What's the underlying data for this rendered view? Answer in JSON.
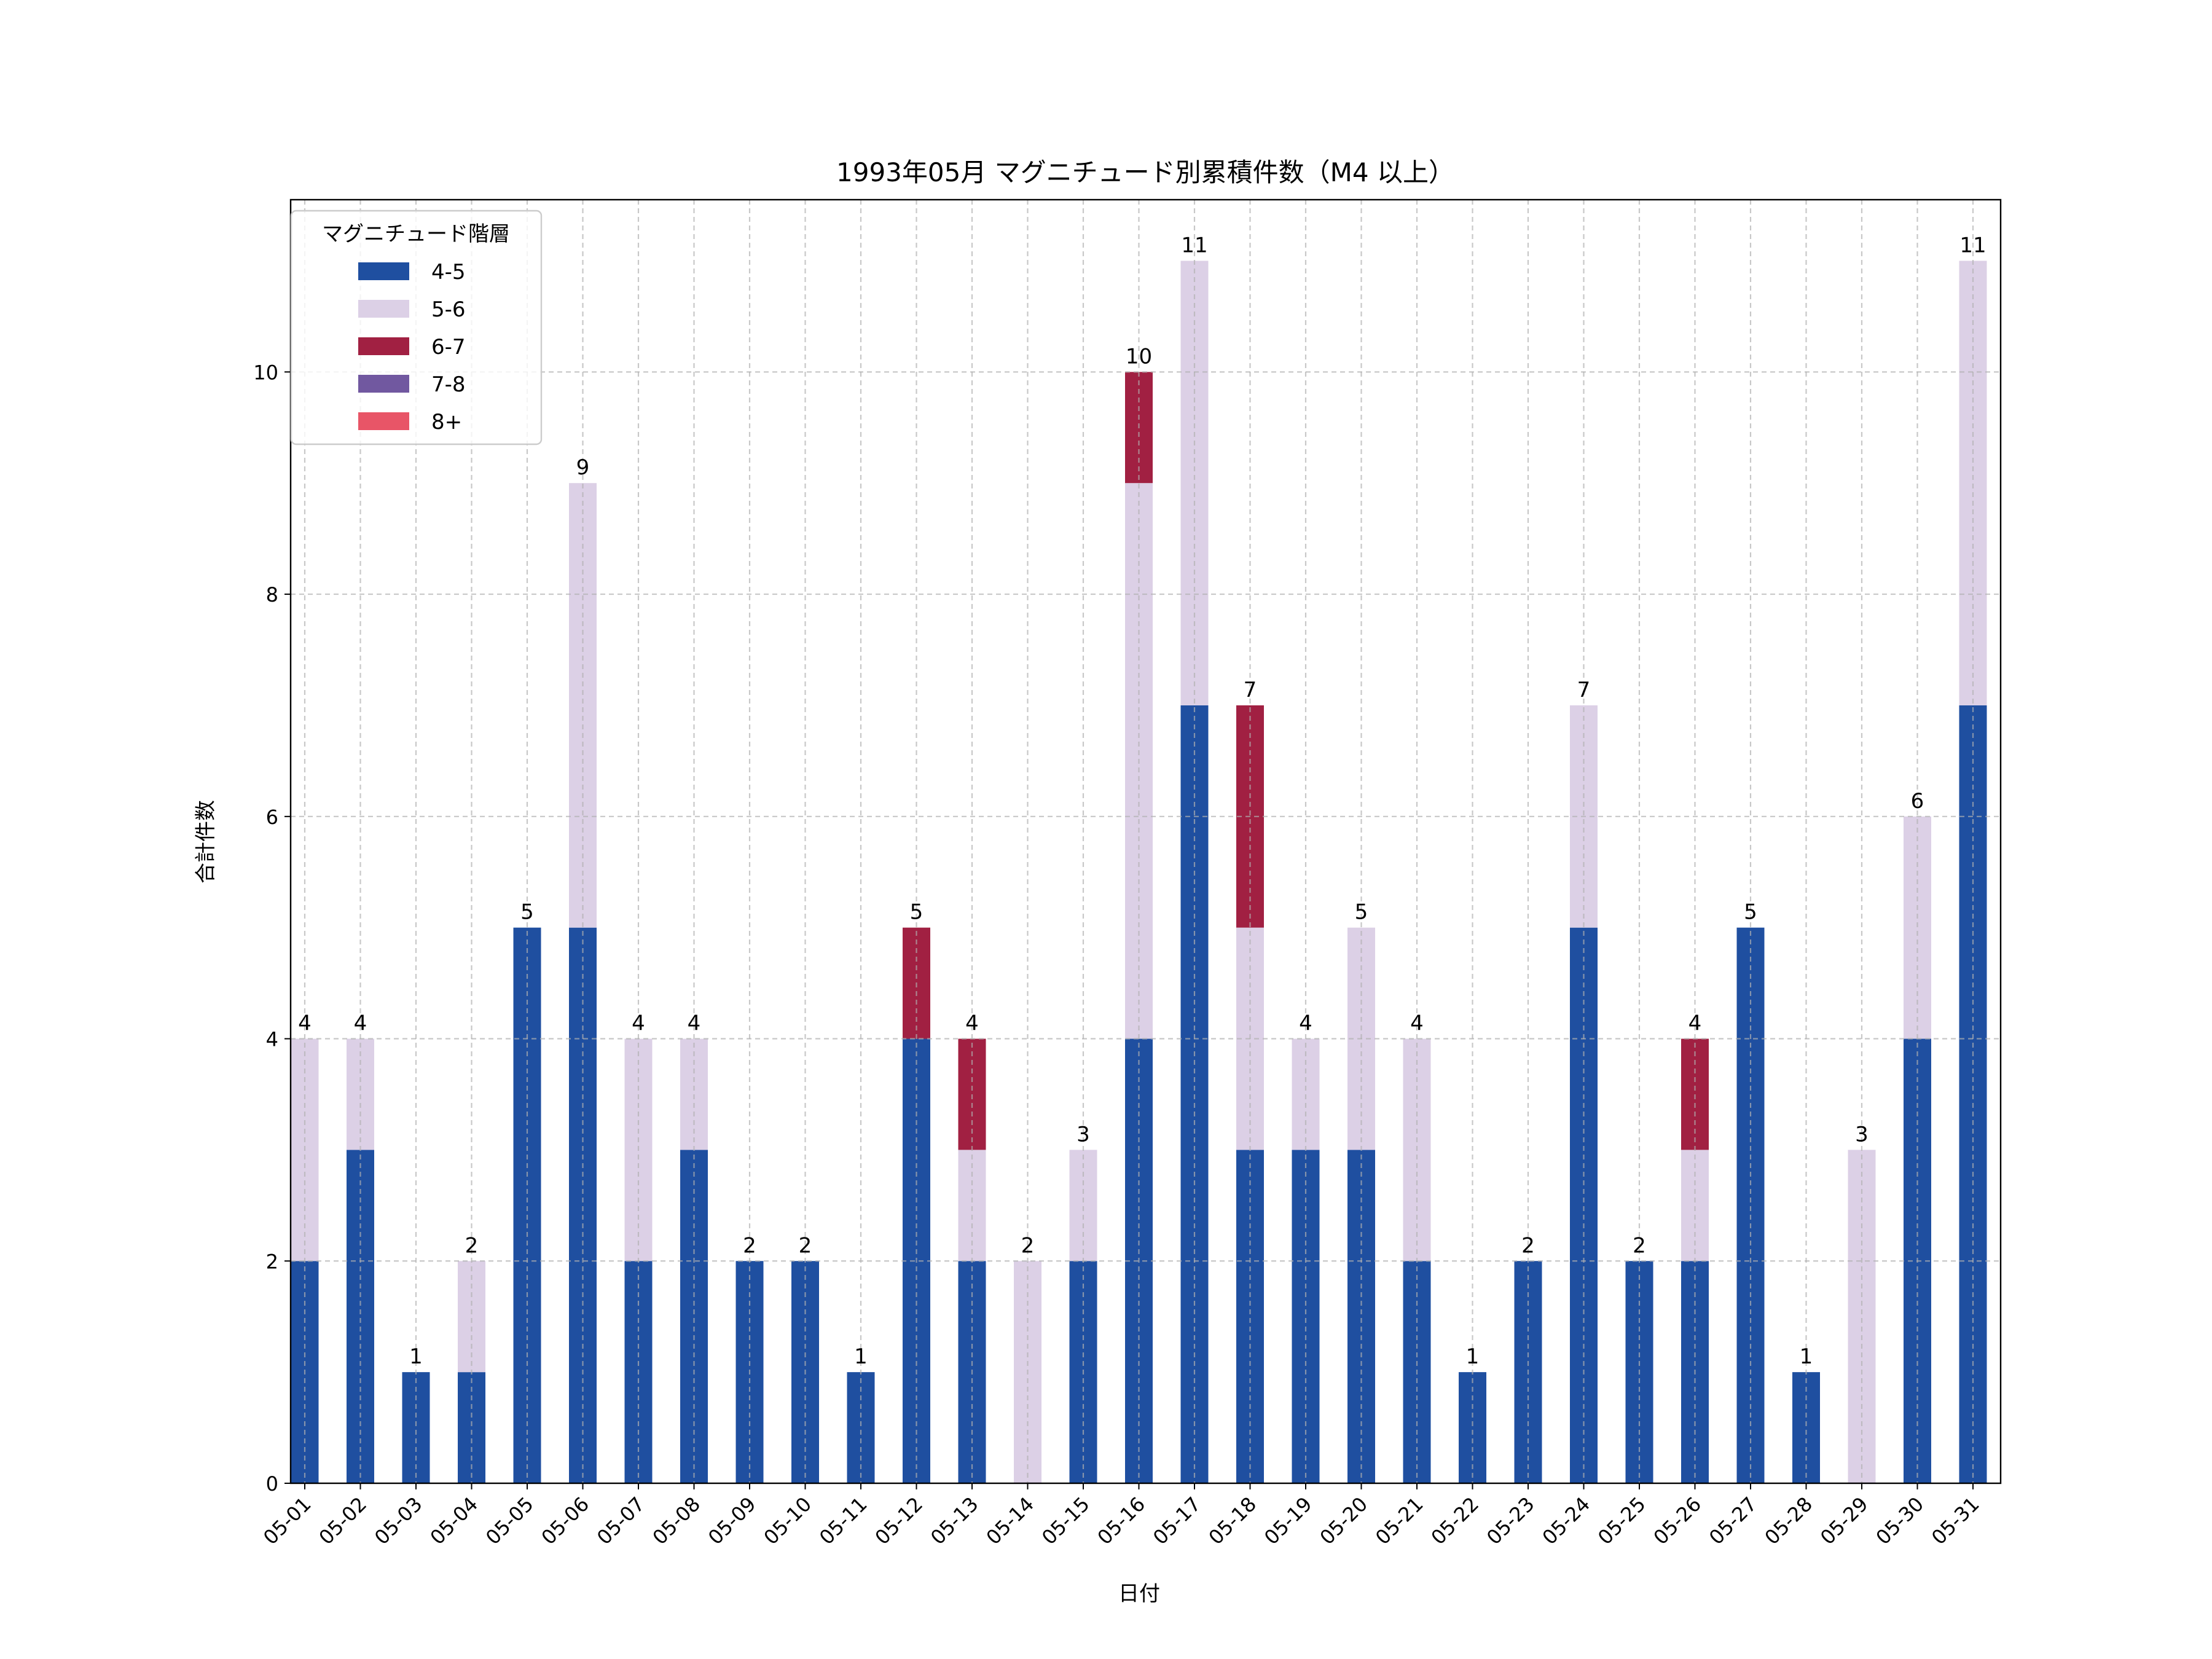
{
  "chart_data": {
    "type": "bar",
    "stacked": true,
    "title": "1993年05月 マグニチュード別累積件数（M4 以上）",
    "xlabel": "日付",
    "ylabel": "合計件数",
    "ylim": [
      0,
      11.55
    ],
    "yticks": [
      0,
      2,
      4,
      6,
      8,
      10
    ],
    "grid": true,
    "legend": {
      "title": "マグニチュード階層",
      "placement": "top-left"
    },
    "categories": [
      "05-01",
      "05-02",
      "05-03",
      "05-04",
      "05-05",
      "05-06",
      "05-07",
      "05-08",
      "05-09",
      "05-10",
      "05-11",
      "05-12",
      "05-13",
      "05-14",
      "05-15",
      "05-16",
      "05-17",
      "05-18",
      "05-19",
      "05-20",
      "05-21",
      "05-22",
      "05-23",
      "05-24",
      "05-25",
      "05-26",
      "05-27",
      "05-28",
      "05-29",
      "05-30",
      "05-31"
    ],
    "series": [
      {
        "name": "4-5",
        "color": "#1f4fa0",
        "values": [
          2,
          3,
          1,
          1,
          5,
          5,
          2,
          3,
          2,
          2,
          1,
          4,
          2,
          0,
          2,
          4,
          7,
          3,
          3,
          3,
          2,
          1,
          2,
          5,
          2,
          2,
          5,
          1,
          0,
          4,
          7
        ]
      },
      {
        "name": "5-6",
        "color": "#dcd0e6",
        "values": [
          2,
          1,
          0,
          1,
          0,
          4,
          2,
          1,
          0,
          0,
          0,
          0,
          1,
          2,
          1,
          5,
          4,
          2,
          1,
          2,
          2,
          0,
          0,
          2,
          0,
          1,
          0,
          0,
          3,
          2,
          4
        ]
      },
      {
        "name": "6-7",
        "color": "#a12042",
        "values": [
          0,
          0,
          0,
          0,
          0,
          0,
          0,
          0,
          0,
          0,
          0,
          1,
          1,
          0,
          0,
          1,
          0,
          2,
          0,
          0,
          0,
          0,
          0,
          0,
          0,
          1,
          0,
          0,
          0,
          0,
          0
        ]
      },
      {
        "name": "7-8",
        "color": "#7158a0",
        "values": [
          0,
          0,
          0,
          0,
          0,
          0,
          0,
          0,
          0,
          0,
          0,
          0,
          0,
          0,
          0,
          0,
          0,
          0,
          0,
          0,
          0,
          0,
          0,
          0,
          0,
          0,
          0,
          0,
          0,
          0,
          0
        ]
      },
      {
        "name": "8+",
        "color": "#e85567",
        "values": [
          0,
          0,
          0,
          0,
          0,
          0,
          0,
          0,
          0,
          0,
          0,
          0,
          0,
          0,
          0,
          0,
          0,
          0,
          0,
          0,
          0,
          0,
          0,
          0,
          0,
          0,
          0,
          0,
          0,
          0,
          0
        ]
      }
    ],
    "totals": [
      4,
      4,
      1,
      2,
      5,
      9,
      4,
      4,
      2,
      2,
      1,
      5,
      4,
      2,
      3,
      10,
      11,
      7,
      4,
      5,
      4,
      1,
      2,
      7,
      2,
      4,
      5,
      1,
      3,
      6,
      11
    ]
  }
}
